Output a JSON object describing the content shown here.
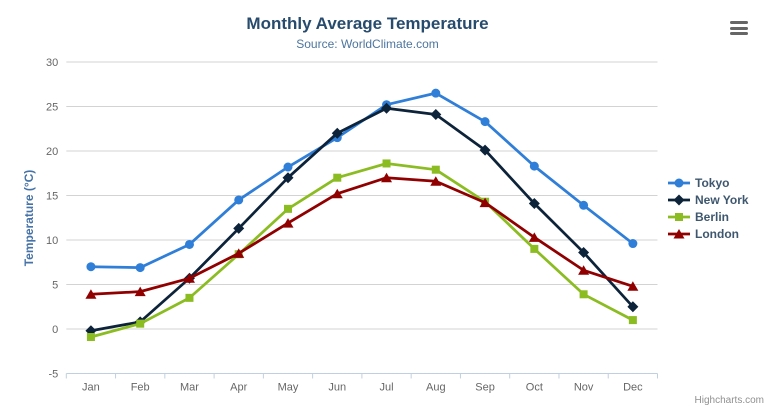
{
  "chart_data": {
    "type": "line",
    "title": "Monthly Average Temperature",
    "subtitle": "Source: WorldClimate.com",
    "xlabel": "",
    "ylabel": "Temperature (°C)",
    "categories": [
      "Jan",
      "Feb",
      "Mar",
      "Apr",
      "May",
      "Jun",
      "Jul",
      "Aug",
      "Sep",
      "Oct",
      "Nov",
      "Dec"
    ],
    "ylim": [
      -5,
      30
    ],
    "ytick_labels": [
      "-5",
      "0",
      "5",
      "10",
      "15",
      "20",
      "25",
      "30"
    ],
    "grid": "horizontal-only",
    "legend_position": "right",
    "series": [
      {
        "name": "Tokyo",
        "color": "#2f7ed8",
        "marker": "circle",
        "values": [
          7.0,
          6.9,
          9.5,
          14.5,
          18.2,
          21.5,
          25.2,
          26.5,
          23.3,
          18.3,
          13.9,
          9.6
        ]
      },
      {
        "name": "New York",
        "color": "#0d233a",
        "marker": "diamond",
        "values": [
          -0.2,
          0.8,
          5.7,
          11.3,
          17.0,
          22.0,
          24.8,
          24.1,
          20.1,
          14.1,
          8.6,
          2.5
        ]
      },
      {
        "name": "Berlin",
        "color": "#8bbc21",
        "marker": "square",
        "values": [
          -0.9,
          0.6,
          3.5,
          8.4,
          13.5,
          17.0,
          18.6,
          17.9,
          14.3,
          9.0,
          3.9,
          1.0
        ]
      },
      {
        "name": "London",
        "color": "#910000",
        "marker": "triangle",
        "values": [
          3.9,
          4.2,
          5.7,
          8.5,
          11.9,
          15.2,
          17.0,
          16.6,
          14.2,
          10.3,
          6.6,
          4.8
        ]
      }
    ],
    "axis_colors": {
      "axis_line": "#c0d0e0",
      "gridline": "#d3d3d3",
      "labels": "#666666"
    }
  },
  "toolbar": {
    "menu_icon": "hamburger"
  },
  "credits": {
    "label": "Highcharts.com"
  }
}
